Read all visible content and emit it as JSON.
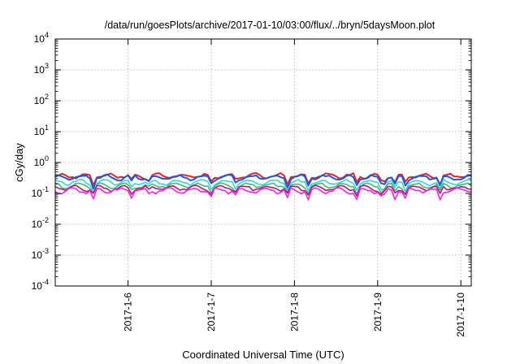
{
  "chart_data": {
    "type": "line",
    "title": "/data/run/goesPlots/archive/2017-01-10/03:00/flux/../bryn/5daysMoon.plot",
    "xlabel": "Coordinated Universal Time (UTC)",
    "ylabel": "cGy/day",
    "y_scale": "log",
    "ylim": [
      0.0001,
      10000
    ],
    "y_ticks": [
      {
        "base": "10",
        "exp": "4",
        "value": 10000
      },
      {
        "base": "10",
        "exp": "3",
        "value": 1000
      },
      {
        "base": "10",
        "exp": "2",
        "value": 100
      },
      {
        "base": "10",
        "exp": "1",
        "value": 10
      },
      {
        "base": "10",
        "exp": "0",
        "value": 1
      },
      {
        "base": "10",
        "exp": "-1",
        "value": 0.1
      },
      {
        "base": "10",
        "exp": "-2",
        "value": 0.01
      },
      {
        "base": "10",
        "exp": "-3",
        "value": 0.001
      },
      {
        "base": "10",
        "exp": "-4",
        "value": 0.0001
      }
    ],
    "xlim": [
      "2017-01-05T03:00",
      "2017-01-10T03:00"
    ],
    "x_ticks": [
      {
        "label": "2017-1-6",
        "value": "2017-01-06"
      },
      {
        "label": "2017-1-7",
        "value": "2017-01-07"
      },
      {
        "label": "2017-1-8",
        "value": "2017-01-08"
      },
      {
        "label": "2017-1-9",
        "value": "2017-01-09"
      },
      {
        "label": "2017-1-10",
        "value": "2017-01-10"
      }
    ],
    "grid": true,
    "legend": "none",
    "series": [
      {
        "color": "#e8212d",
        "base": 0.37,
        "dip_depth": 0.55
      },
      {
        "color": "#1e59d6",
        "base": 0.33,
        "dip_depth": 0.55
      },
      {
        "color": "#33d6e0",
        "base": 0.23,
        "dip_depth": 0.5
      },
      {
        "color": "#3fbf6e",
        "base": 0.18,
        "dip_depth": 0.45
      },
      {
        "color": "#b0187a",
        "base": 0.15,
        "dip_depth": 0.45
      },
      {
        "color": "#ff1ee8",
        "base": 0.125,
        "dip_depth": 0.6
      }
    ]
  }
}
